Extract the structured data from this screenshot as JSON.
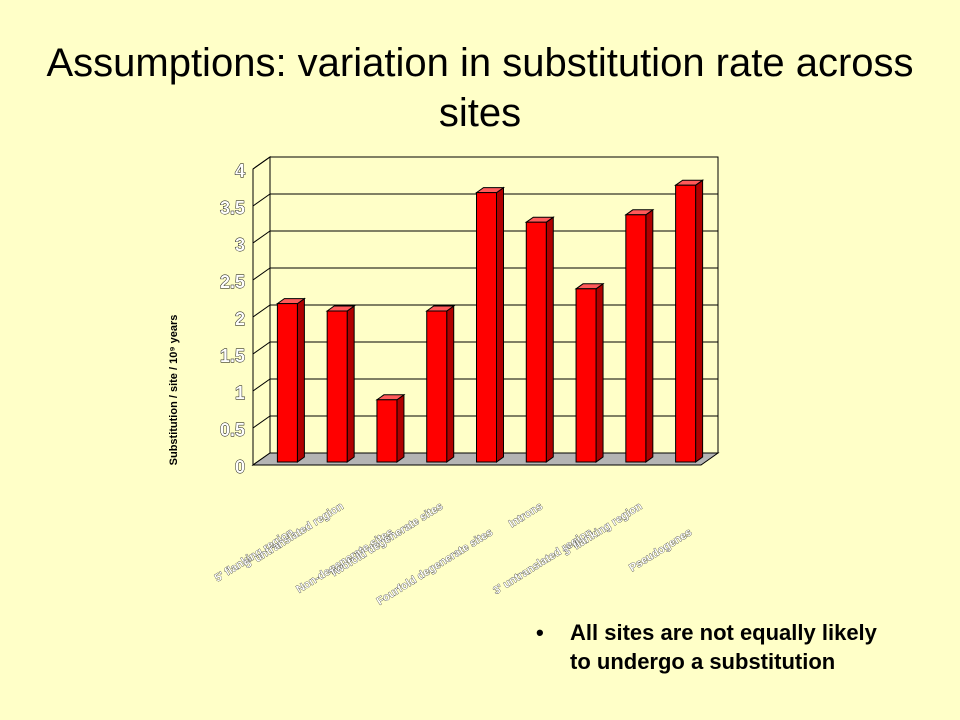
{
  "slide": {
    "title": "Assumptions: variation in substitution rate across sites",
    "bullet_symbol": "•",
    "bullet_text": "All sites are not equally likely to undergo a substitution"
  },
  "colors": {
    "background": "#FFFFC8",
    "bar_front": "#FF0000",
    "bar_side": "#B00000",
    "bar_top": "#FF5A5A",
    "floor": "#B4B4B4"
  },
  "chart_data": {
    "type": "bar",
    "ylabel": "Substitution  / site / 10⁹ years",
    "ylim": [
      0,
      4
    ],
    "yticks": [
      "0",
      "0.5",
      "1",
      "1.5",
      "2",
      "2.5",
      "3",
      "3.5",
      "4"
    ],
    "categories": [
      "5' flanking region",
      "5' untranslated region",
      "Non-degenerate sites",
      "Twofold degenerate sites",
      "Fourfold degenerate sites",
      "Introns",
      "3' untranslated region",
      "3' flanking region",
      "Pseudogenes"
    ],
    "values": [
      2.1,
      2.0,
      0.8,
      2.0,
      3.6,
      3.2,
      2.3,
      3.3,
      3.7
    ],
    "grid": true,
    "legend": "none"
  }
}
